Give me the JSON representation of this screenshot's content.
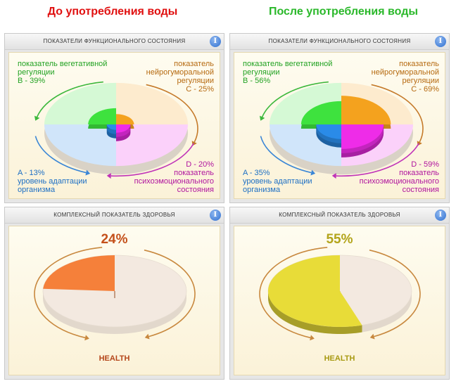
{
  "headings": {
    "before": "До употребления воды",
    "after": "После употребления воды"
  },
  "panel_titles": {
    "functional": "Показатели функционального состояния",
    "complex": "Комплексный показатель здоровья"
  },
  "labels": {
    "b_name": "показатель вегетативной регуляции",
    "c_name": "показатель нейрогуморальной регуляции",
    "d_name": "показатель психоэмоционального состояния",
    "a_name": "уровень адаптации организма"
  },
  "before": {
    "b_value": "B - 39%",
    "c_value": "C - 25%",
    "d_value": "D - 20%",
    "a_value": "A - 13%",
    "health_pct": "24%",
    "health_label": "HEALTH"
  },
  "after": {
    "b_value": "B - 56%",
    "c_value": "C - 69%",
    "d_value": "D - 59%",
    "a_value": "A - 35%",
    "health_pct": "55%",
    "health_label": "HEALTH"
  },
  "colors": {
    "B": "#3ee23e",
    "C": "#f4a21e",
    "D": "#ee2ce8",
    "A": "#2a8be8",
    "health_before": "#f5803a",
    "health_after": "#e8dc38",
    "track": "#f3e9e0"
  },
  "chart_data": [
    {
      "type": "pie",
      "categories": [
        "B",
        "C",
        "D",
        "A"
      ],
      "values": [
        39,
        25,
        20,
        13
      ],
      "title": ""
    },
    {
      "type": "pie",
      "categories": [
        "B",
        "C",
        "D",
        "A"
      ],
      "values": [
        56,
        69,
        59,
        35
      ],
      "title": ""
    },
    {
      "type": "pie",
      "categories": [
        "HEALTH"
      ],
      "values": [
        24
      ],
      "title": ""
    },
    {
      "type": "pie",
      "categories": [
        "HEALTH"
      ],
      "values": [
        55
      ],
      "title": ""
    }
  ]
}
